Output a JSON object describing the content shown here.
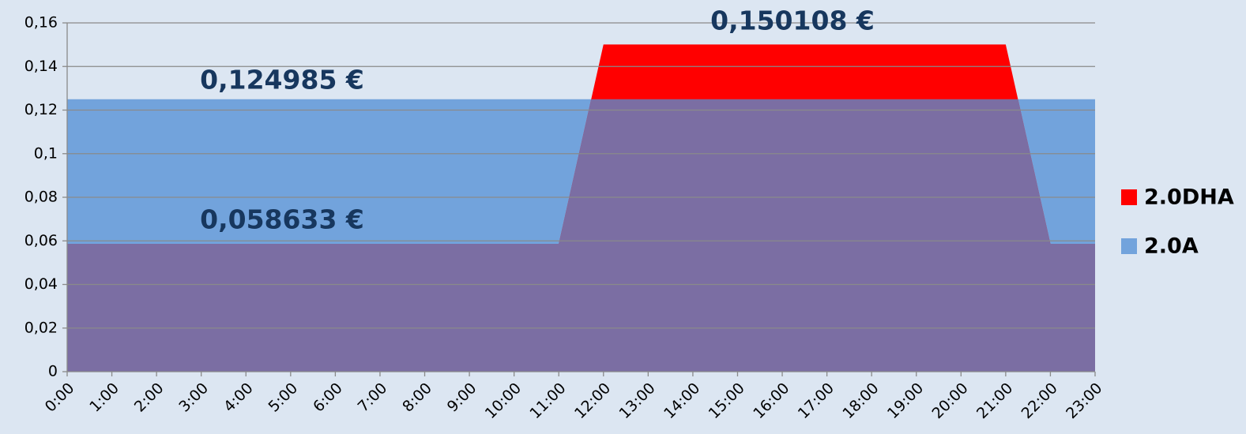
{
  "chart_data": {
    "type": "area",
    "categories": [
      "0:00",
      "1:00",
      "2:00",
      "3:00",
      "4:00",
      "5:00",
      "6:00",
      "7:00",
      "8:00",
      "9:00",
      "10:00",
      "11:00",
      "12:00",
      "13:00",
      "14:00",
      "15:00",
      "16:00",
      "17:00",
      "18:00",
      "19:00",
      "20:00",
      "21:00",
      "22:00",
      "23:00"
    ],
    "series": [
      {
        "name": "2.0DHA",
        "color": "#ff0000",
        "values": [
          0.058633,
          0.058633,
          0.058633,
          0.058633,
          0.058633,
          0.058633,
          0.058633,
          0.058633,
          0.058633,
          0.058633,
          0.058633,
          0.058633,
          0.150108,
          0.150108,
          0.150108,
          0.150108,
          0.150108,
          0.150108,
          0.150108,
          0.150108,
          0.150108,
          0.150108,
          0.058633,
          0.058633
        ]
      },
      {
        "name": "2.0A",
        "color": "#72a3dc",
        "values": [
          0.124985,
          0.124985,
          0.124985,
          0.124985,
          0.124985,
          0.124985,
          0.124985,
          0.124985,
          0.124985,
          0.124985,
          0.124985,
          0.124985,
          0.124985,
          0.124985,
          0.124985,
          0.124985,
          0.124985,
          0.124985,
          0.124985,
          0.124985,
          0.124985,
          0.124985,
          0.124985,
          0.124985
        ]
      }
    ],
    "annotations": [
      "0,150108 €",
      "0,124985 €",
      "0,058633 €"
    ],
    "ylim": [
      0,
      0.16
    ],
    "yticks": [
      0,
      {
        "value": 0.02,
        "label": "0,02"
      },
      {
        "value": 0.04,
        "label": "0,04"
      },
      {
        "value": 0.06,
        "label": "0,06"
      },
      {
        "value": 0.08,
        "label": "0,08"
      },
      {
        "value": 0.1,
        "label": "0,1"
      },
      {
        "value": 0.12,
        "label": "0,12"
      },
      {
        "value": 0.14,
        "label": "0,14"
      },
      {
        "value": 0.16,
        "label": "0,16"
      }
    ],
    "grid": true,
    "legend": "right"
  }
}
